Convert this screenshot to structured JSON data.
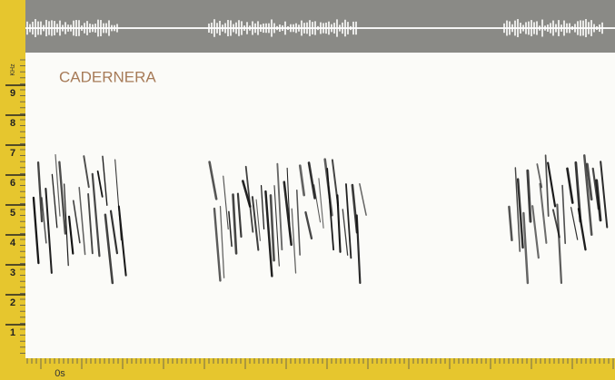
{
  "title": "CADERNERA",
  "frequency_axis": {
    "unit": "KHz",
    "ticks": [
      1,
      2,
      3,
      4,
      5,
      6,
      7,
      8,
      9
    ]
  },
  "time_axis": {
    "start_label": "0s"
  }
}
